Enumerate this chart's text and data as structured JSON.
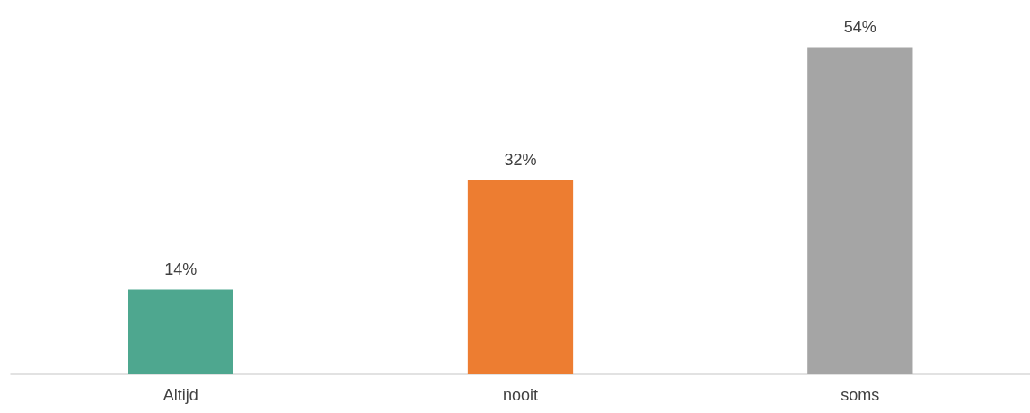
{
  "chart_data": {
    "type": "bar",
    "categories": [
      "Altijd",
      "nooit",
      "soms"
    ],
    "values": [
      14,
      32,
      54
    ],
    "colors": [
      "#4ea78f",
      "#ed7d31",
      "#a5a5a5"
    ],
    "value_labels": [
      "14%",
      "32%",
      "54%"
    ]
  }
}
